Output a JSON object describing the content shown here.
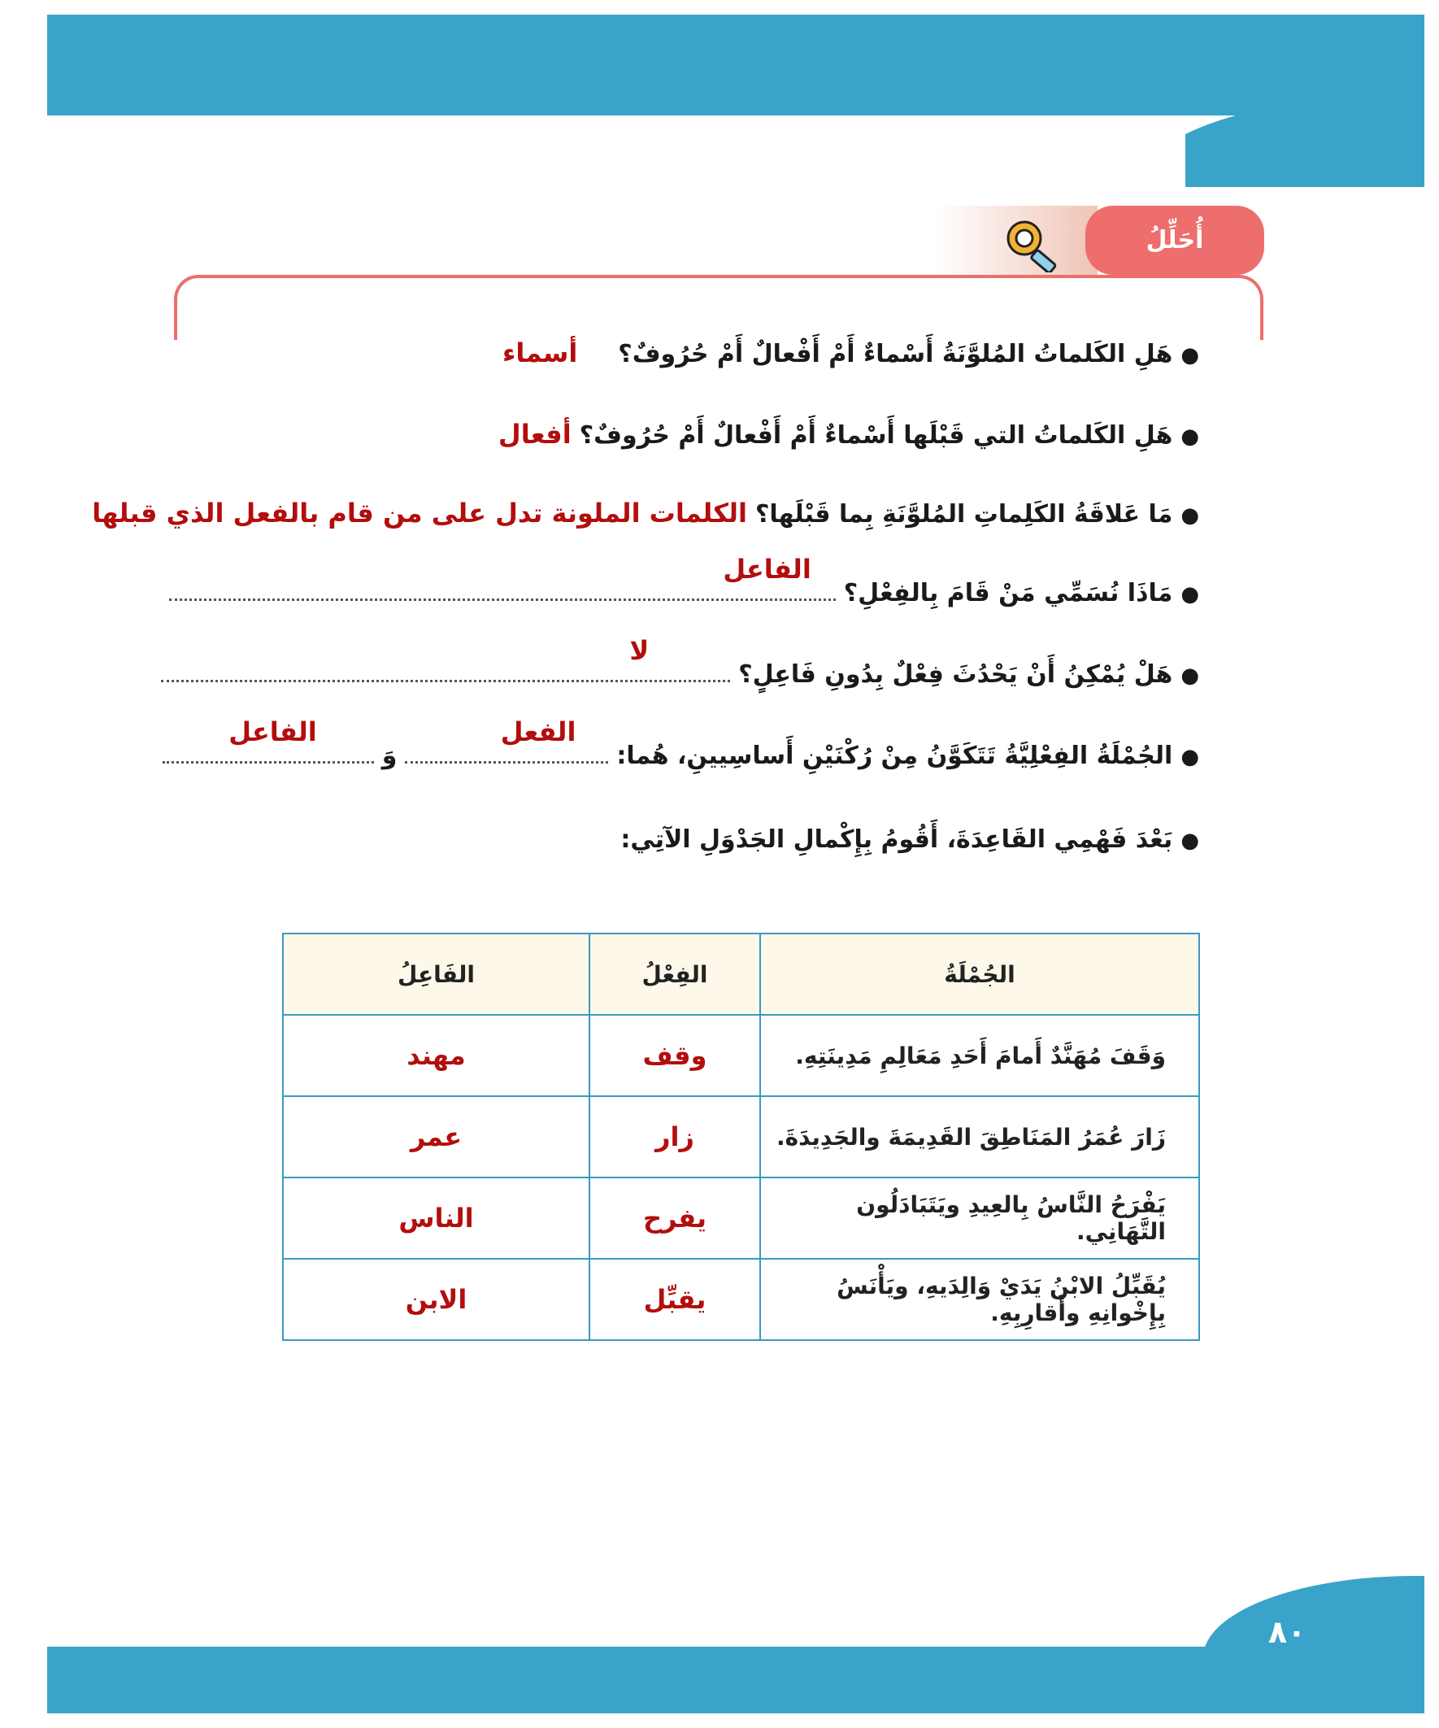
{
  "page_number": "٨٠",
  "section": {
    "title": "أُحَلِّلُ",
    "icon": "magnifier-gear-icon"
  },
  "questions": [
    {
      "text": "هَلِ الكَلماتُ المُلوَّنَةُ أَسْماءٌ أَمْ أَفْعالٌ أَمْ حُرُوفٌ؟",
      "answer": "أسماء"
    },
    {
      "text": "هَلِ الكَلماتُ التي قَبْلَها أَسْماءٌ أَمْ أَفْعالٌ أَمْ حُرُوفٌ؟",
      "answer": "أفعال"
    },
    {
      "text": "مَا عَلاقَةُ الكَلِماتِ المُلوَّنَةِ بِما قَبْلَها؟",
      "answer": "الكلمات الملونة تدل على من قام بالفعل الذي قبلها"
    },
    {
      "text": "مَاذَا نُسَمِّي مَنْ قَامَ بِالفِعْلِ؟",
      "answer": "الفاعل"
    },
    {
      "text": "هَلْ يُمْكِنُ أَنْ يَحْدُثَ فِعْلٌ بِدُونِ فَاعِلٍ؟",
      "answer": "لا"
    },
    {
      "text": "الجُمْلَةُ الفِعْلِيَّةُ تَتَكَوَّنُ مِنْ رُكْنَيْنِ أَساسِيينِ، هُما:",
      "answer": "الفعل",
      "connector": "وَ",
      "answer2": "الفاعل"
    },
    {
      "text": "بَعْدَ فَهْمِي القَاعِدَةَ، أَقُومُ بِإِكْمالِ الجَدْوَلِ الآتِي:"
    }
  ],
  "table": {
    "headers": [
      "الجُمْلَةُ",
      "الفِعْلُ",
      "الفَاعِلُ"
    ],
    "rows": [
      [
        "وَقَفَ مُهَنَّدٌ أَمامَ أَحَدِ مَعَالِمِ مَدِينَتِهِ.",
        "وقف",
        "مهند"
      ],
      [
        "زَارَ عُمَرُ المَنَاطِقَ القَدِيمَةَ والجَدِيدَةَ.",
        "زار",
        "عمر"
      ],
      [
        "يَفْرَحُ النَّاسُ بِالعِيدِ ويَتَبَادَلُون التَّهَانِي.",
        "يفرح",
        "الناس"
      ],
      [
        "يُقَبِّلُ الابْنُ يَدَيْ وَالِدَيهِ، ويَأْنَسُ بِإِخْوانِهِ وأَقارِبِهِ.",
        "يقبِّل",
        "الابن"
      ]
    ]
  },
  "colors": {
    "band": "#3aa3c9",
    "accent": "#ed6e6c",
    "answer": "#b30d0d"
  }
}
